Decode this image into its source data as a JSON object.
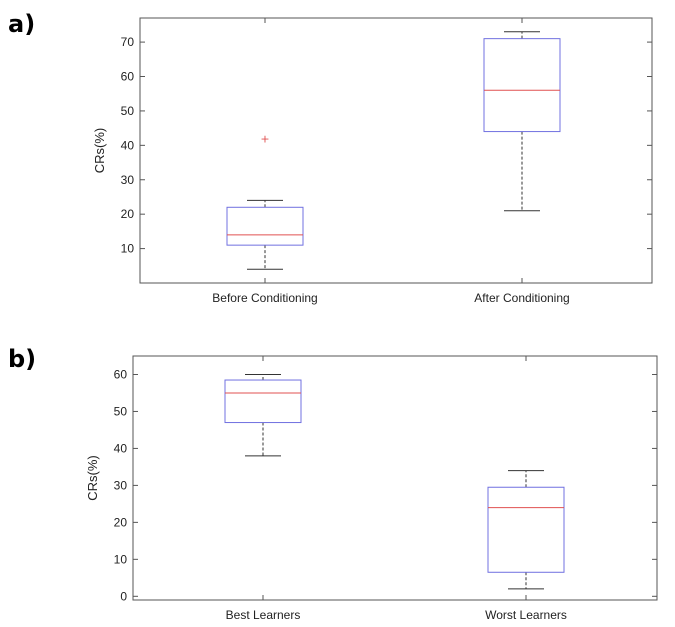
{
  "panels": [
    {
      "label": "a)"
    },
    {
      "label": "b)"
    }
  ],
  "chart_data": [
    {
      "type": "box",
      "panel": "a)",
      "ylabel": "CRs(%)",
      "ylim": [
        0,
        77
      ],
      "yticks": [
        10,
        20,
        30,
        40,
        50,
        60,
        70
      ],
      "categories": [
        "Before Conditioning",
        "After Conditioning"
      ],
      "boxes": [
        {
          "name": "Before Conditioning",
          "whisker_low": 4,
          "q1": 11,
          "median": 14,
          "q3": 22,
          "whisker_high": 24,
          "outliers": [
            42
          ]
        },
        {
          "name": "After Conditioning",
          "whisker_low": 21,
          "q1": 44,
          "median": 56,
          "q3": 71,
          "whisker_high": 73,
          "outliers": []
        }
      ],
      "colors": {
        "box": "#7070e0",
        "median": "#e05050",
        "whisker": "#333333",
        "outlier": "#e05050"
      }
    },
    {
      "type": "box",
      "panel": "b)",
      "ylabel": "CRs(%)",
      "ylim": [
        -1,
        65
      ],
      "yticks": [
        0,
        10,
        20,
        30,
        40,
        50,
        60
      ],
      "categories": [
        "Best Learners",
        "Worst Learners"
      ],
      "boxes": [
        {
          "name": "Best Learners",
          "whisker_low": 38,
          "q1": 47,
          "median": 55,
          "q3": 58.5,
          "whisker_high": 60,
          "outliers": []
        },
        {
          "name": "Worst Learners",
          "whisker_low": 2,
          "q1": 6.5,
          "median": 24,
          "q3": 29.5,
          "whisker_high": 34,
          "outliers": []
        }
      ],
      "colors": {
        "box": "#7070e0",
        "median": "#e05050",
        "whisker": "#333333",
        "outlier": "#e05050"
      }
    }
  ]
}
